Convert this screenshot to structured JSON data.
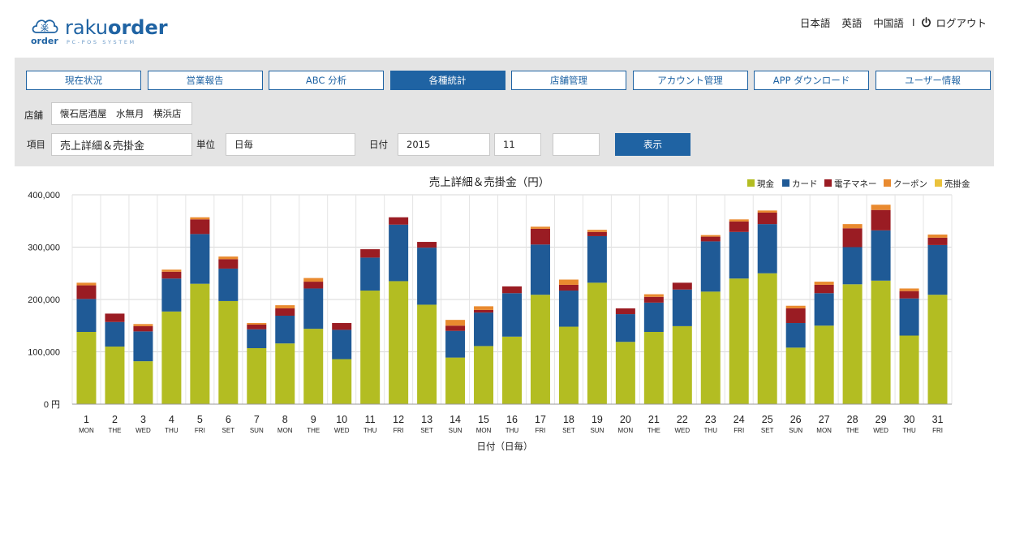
{
  "brand": {
    "name_light": "raku",
    "name_bold": "order",
    "sub": "order",
    "tagline": "PC-POS SYSTEM",
    "mark_char": "楽"
  },
  "top_nav": {
    "lang_ja": "日本語",
    "lang_en": "英語",
    "lang_zh": "中国語",
    "separator": "I",
    "logout": "ログアウト"
  },
  "tabs": [
    {
      "label": "現在状況",
      "active": false
    },
    {
      "label": "営業報告",
      "active": false
    },
    {
      "label": "ABC 分析",
      "active": false
    },
    {
      "label": "各種統計",
      "active": true
    },
    {
      "label": "店舗管理",
      "active": false
    },
    {
      "label": "アカウント管理",
      "active": false
    },
    {
      "label": "APP ダウンロード",
      "active": false
    },
    {
      "label": "ユーザー情報",
      "active": false
    }
  ],
  "filters": {
    "store_label": "店舗",
    "store_value": "懐石居酒屋　水無月　横浜店",
    "item_label": "項目",
    "item_value": "売上詳細＆売掛金",
    "unit_label": "単位",
    "unit_value": "日毎",
    "date_label": "日付",
    "year_value": "2015",
    "month_value": "11",
    "day_value": "",
    "show_button": "表示"
  },
  "colors": {
    "accent": "#1f63a3",
    "cash": "#b3bd22",
    "card": "#1f5a96",
    "emoney": "#9a1c23",
    "coupon": "#e98a2f",
    "receivable": "#eac23c"
  },
  "chart_data": {
    "type": "bar",
    "stacked": true,
    "title": "売上詳細＆売掛金（円）",
    "xlabel": "日付（日毎）",
    "ylabel": "",
    "ylim": [
      0,
      400000
    ],
    "yticks": [
      "0 円",
      "100,000",
      "200,000",
      "300,000",
      "400,000"
    ],
    "legend_position": "top-right",
    "grid": true,
    "categories": [
      "1",
      "2",
      "3",
      "4",
      "5",
      "6",
      "7",
      "8",
      "9",
      "10",
      "11",
      "12",
      "13",
      "14",
      "15",
      "16",
      "17",
      "18",
      "19",
      "20",
      "21",
      "22",
      "23",
      "24",
      "25",
      "26",
      "27",
      "28",
      "29",
      "30",
      "31"
    ],
    "weekdays": [
      "MON",
      "THE",
      "WED",
      "THU",
      "FRI",
      "SET",
      "SUN",
      "MON",
      "THE",
      "WED",
      "THU",
      "FRI",
      "SET",
      "SUN",
      "MON",
      "THU",
      "FRI",
      "SET",
      "SUN",
      "MON",
      "THE",
      "WED",
      "THU",
      "FRI",
      "SET",
      "SUN",
      "MON",
      "THE",
      "WED",
      "THU",
      "FRI"
    ],
    "series": [
      {
        "name": "現金",
        "values": [
          138000,
          110000,
          82000,
          177000,
          230000,
          197000,
          107000,
          116000,
          144000,
          86000,
          217000,
          235000,
          190000,
          89000,
          111000,
          129000,
          209000,
          148000,
          232000,
          119000,
          138000,
          149000,
          215000,
          240000,
          250000,
          108000,
          150000,
          229000,
          236000,
          131000,
          209000
        ]
      },
      {
        "name": "カード",
        "values": [
          63000,
          47000,
          57000,
          63000,
          95000,
          62000,
          36000,
          53000,
          77000,
          56000,
          63000,
          108000,
          109000,
          51000,
          64000,
          83000,
          96000,
          69000,
          89000,
          53000,
          56000,
          70000,
          96000,
          89000,
          94000,
          47000,
          62000,
          71000,
          96000,
          71000,
          95000
        ]
      },
      {
        "name": "電子マネー",
        "values": [
          26000,
          16000,
          10000,
          13000,
          28000,
          18000,
          9000,
          14000,
          13000,
          13000,
          16000,
          14000,
          11000,
          10000,
          5000,
          13000,
          30000,
          11000,
          8000,
          11000,
          11000,
          13000,
          9000,
          20000,
          22000,
          28000,
          16000,
          36000,
          39000,
          14000,
          14000
        ]
      },
      {
        "name": "クーポン",
        "values": [
          5000,
          0,
          4000,
          4000,
          4000,
          5000,
          3000,
          6000,
          7000,
          0,
          0,
          0,
          0,
          11000,
          7000,
          0,
          4000,
          10000,
          4000,
          0,
          5000,
          0,
          3000,
          4000,
          4000,
          5000,
          6000,
          8000,
          10000,
          5000,
          6000
        ]
      },
      {
        "name": "売掛金",
        "values": [
          0,
          0,
          0,
          0,
          0,
          0,
          0,
          0,
          0,
          0,
          0,
          0,
          0,
          0,
          0,
          0,
          0,
          0,
          0,
          0,
          0,
          0,
          0,
          0,
          0,
          0,
          0,
          0,
          0,
          0,
          0
        ]
      }
    ]
  }
}
